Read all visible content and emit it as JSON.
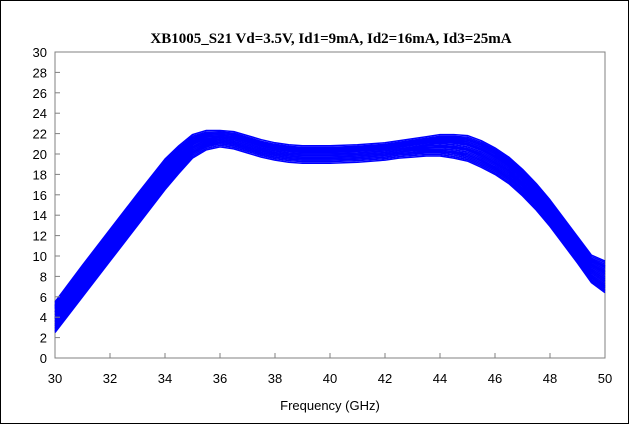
{
  "chart_data": {
    "type": "line",
    "title": "XB1005_S21  Vd=3.5V, Id1=9mA, Id2=16mA, Id3=25mA",
    "xlabel": "Frequency (GHz)",
    "ylabel": "",
    "xlim": [
      30,
      50
    ],
    "ylim": [
      0,
      30
    ],
    "x_ticks": [
      "30",
      "32",
      "34",
      "36",
      "38",
      "40",
      "42",
      "44",
      "46",
      "48",
      "50"
    ],
    "y_ticks": [
      "0",
      "2",
      "4",
      "6",
      "8",
      "10",
      "12",
      "14",
      "16",
      "18",
      "20",
      "22",
      "24",
      "26",
      "28",
      "30"
    ],
    "grid": false,
    "legend": "none",
    "line_color": "#0000ff",
    "x": [
      30,
      31,
      32,
      33,
      34,
      34.5,
      35,
      35.5,
      36,
      36.5,
      37,
      37.5,
      38,
      38.5,
      39,
      40,
      41,
      42,
      42.5,
      43,
      43.5,
      44,
      44.5,
      45,
      45.5,
      46,
      46.5,
      47,
      47.5,
      48,
      48.5,
      49,
      49.5,
      50
    ],
    "series": [
      {
        "values": [
          2.8,
          6.3,
          9.8,
          13.3,
          16.8,
          18.4,
          19.9,
          20.7,
          21.0,
          20.8,
          20.4,
          20.0,
          19.7,
          19.5,
          19.4,
          19.4,
          19.5,
          19.7,
          19.9,
          20.0,
          20.1,
          20.1,
          19.9,
          19.6,
          19.0,
          18.3,
          17.4,
          16.2,
          14.8,
          13.2,
          11.4,
          9.6,
          7.7,
          6.7
        ]
      },
      {
        "values": [
          3.5,
          7.0,
          10.5,
          14.0,
          17.5,
          19.0,
          20.4,
          21.1,
          21.3,
          21.1,
          20.7,
          20.3,
          20.0,
          19.8,
          19.7,
          19.7,
          19.8,
          20.0,
          20.2,
          20.3,
          20.5,
          20.5,
          20.4,
          20.2,
          19.6,
          18.9,
          18.0,
          16.8,
          15.4,
          13.8,
          12.0,
          10.2,
          8.3,
          7.4
        ]
      },
      {
        "values": [
          4.2,
          7.7,
          11.2,
          14.7,
          18.2,
          19.6,
          20.9,
          21.5,
          21.6,
          21.4,
          21.0,
          20.6,
          20.3,
          20.1,
          20.0,
          20.0,
          20.1,
          20.3,
          20.5,
          20.7,
          20.9,
          21.0,
          20.9,
          20.7,
          20.2,
          19.5,
          18.6,
          17.4,
          16.0,
          14.4,
          12.6,
          10.8,
          8.9,
          8.1
        ]
      },
      {
        "values": [
          4.8,
          8.3,
          11.8,
          15.3,
          18.8,
          20.1,
          21.3,
          21.8,
          21.9,
          21.7,
          21.3,
          20.9,
          20.6,
          20.4,
          20.3,
          20.3,
          20.4,
          20.6,
          20.8,
          21.0,
          21.2,
          21.4,
          21.4,
          21.2,
          20.7,
          20.0,
          19.1,
          17.9,
          16.5,
          14.9,
          13.1,
          11.3,
          9.4,
          8.7
        ]
      },
      {
        "values": [
          5.2,
          8.8,
          12.3,
          15.8,
          19.2,
          20.5,
          21.6,
          22.0,
          22.0,
          21.9,
          21.5,
          21.1,
          20.8,
          20.6,
          20.5,
          20.5,
          20.6,
          20.8,
          21.0,
          21.2,
          21.4,
          21.6,
          21.6,
          21.5,
          21.0,
          20.3,
          19.4,
          18.2,
          16.8,
          15.2,
          13.4,
          11.6,
          9.8,
          9.2
        ]
      }
    ]
  }
}
